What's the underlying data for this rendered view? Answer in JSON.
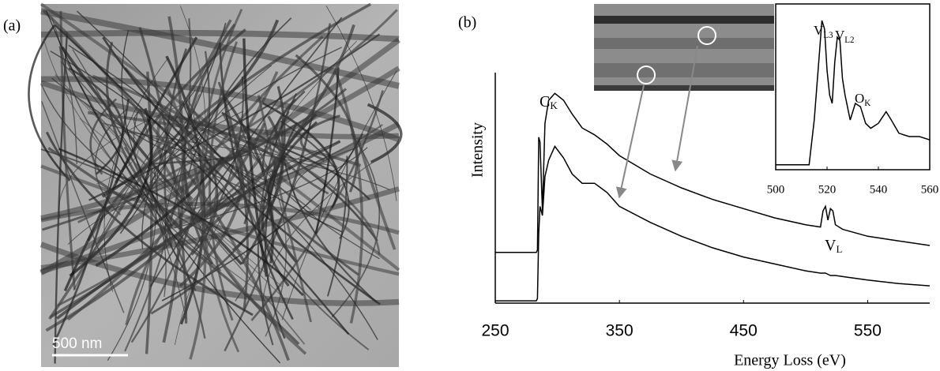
{
  "panels": [
    {
      "label": "(a)",
      "scale_bar": "500 nm"
    },
    {
      "label": "(b)"
    }
  ],
  "chart_data": [
    {
      "type": "line",
      "x_label": "Energy Loss (eV)",
      "y_label": "Intensity",
      "xlim": [
        250,
        600
      ],
      "xticks": [
        250,
        350,
        450,
        550
      ],
      "ylim": [
        0,
        100
      ],
      "color": "#000000",
      "annotations": [
        {
          "text": "C",
          "sub": "K"
        },
        {
          "text": "V",
          "sub": "L"
        }
      ],
      "x": [
        250,
        283,
        284,
        285,
        286,
        288,
        290,
        293,
        298,
        305,
        312,
        320,
        330,
        340,
        350,
        375,
        400,
        425,
        450,
        475,
        500,
        512,
        514,
        516,
        518,
        520,
        522,
        524,
        530,
        550,
        575,
        600
      ],
      "series": [
        {
          "values": [
            22,
            22,
            23,
            72,
            70,
            40,
            78,
            88,
            91,
            88,
            82,
            76,
            73,
            69,
            64,
            56,
            50,
            45,
            41,
            37,
            34,
            33,
            40,
            42,
            36,
            41,
            40,
            34,
            32,
            29,
            27,
            25
          ]
        },
        {
          "values": [
            1,
            1,
            2,
            30,
            42,
            38,
            55,
            62,
            68,
            63,
            56,
            52,
            52,
            48,
            42,
            35,
            29,
            24,
            20,
            17,
            14,
            13,
            13,
            13,
            12.5,
            12,
            12,
            12,
            11.5,
            10,
            8.5,
            7.5
          ]
        }
      ]
    },
    {
      "type": "line",
      "xlim": [
        500,
        560
      ],
      "xticks": [
        500,
        520,
        540,
        560
      ],
      "ylim": [
        0,
        100
      ],
      "color": "#000000",
      "annotations": [
        {
          "text": "V",
          "sub": "L3"
        },
        {
          "text": "V",
          "sub": "L2"
        },
        {
          "text": "O",
          "sub": "K"
        }
      ],
      "x": [
        500,
        505,
        510,
        513,
        515,
        517,
        518,
        519,
        520,
        521,
        522,
        523,
        524,
        525,
        526,
        527,
        529,
        531,
        533,
        535,
        537,
        540,
        543,
        545,
        548,
        552,
        556,
        560
      ],
      "series": [
        {
          "values": [
            3,
            3,
            3,
            3,
            30,
            70,
            90,
            85,
            60,
            45,
            40,
            65,
            80,
            78,
            55,
            45,
            30,
            40,
            38,
            28,
            25,
            28,
            35,
            30,
            22,
            20,
            20,
            18
          ]
        }
      ]
    }
  ]
}
